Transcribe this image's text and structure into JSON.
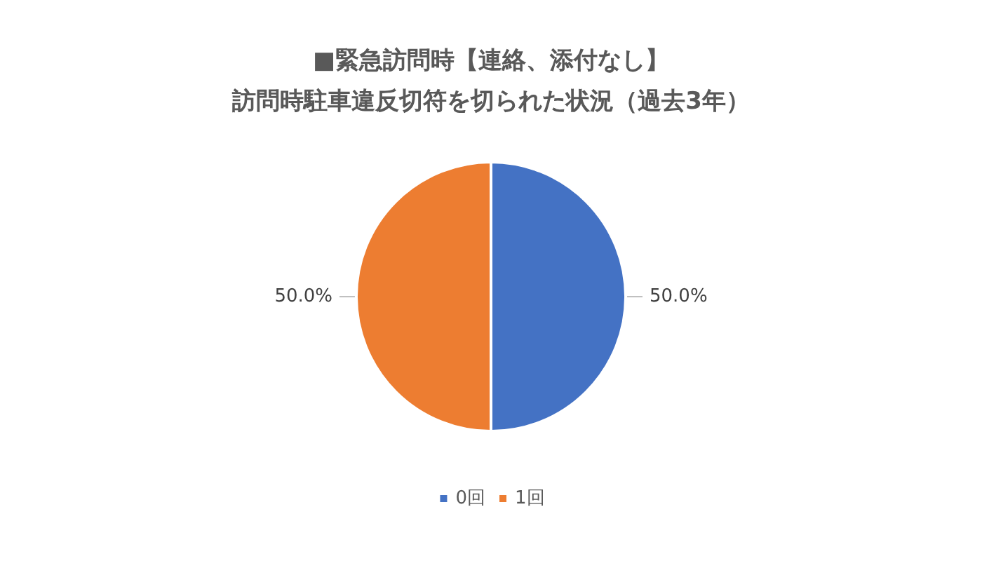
{
  "chart_data": {
    "type": "pie",
    "title": "■緊急訪問時【連絡、添付なし】",
    "subtitle": "訪問時駐車違反切符を切られた状況（過去3年）",
    "categories": [
      "0回",
      "1回"
    ],
    "values": [
      50,
      50
    ],
    "colors": [
      "#4472c4",
      "#ed7d31"
    ],
    "value_labels": [
      "50.0%",
      "50.0%"
    ],
    "legend": "bottom"
  }
}
